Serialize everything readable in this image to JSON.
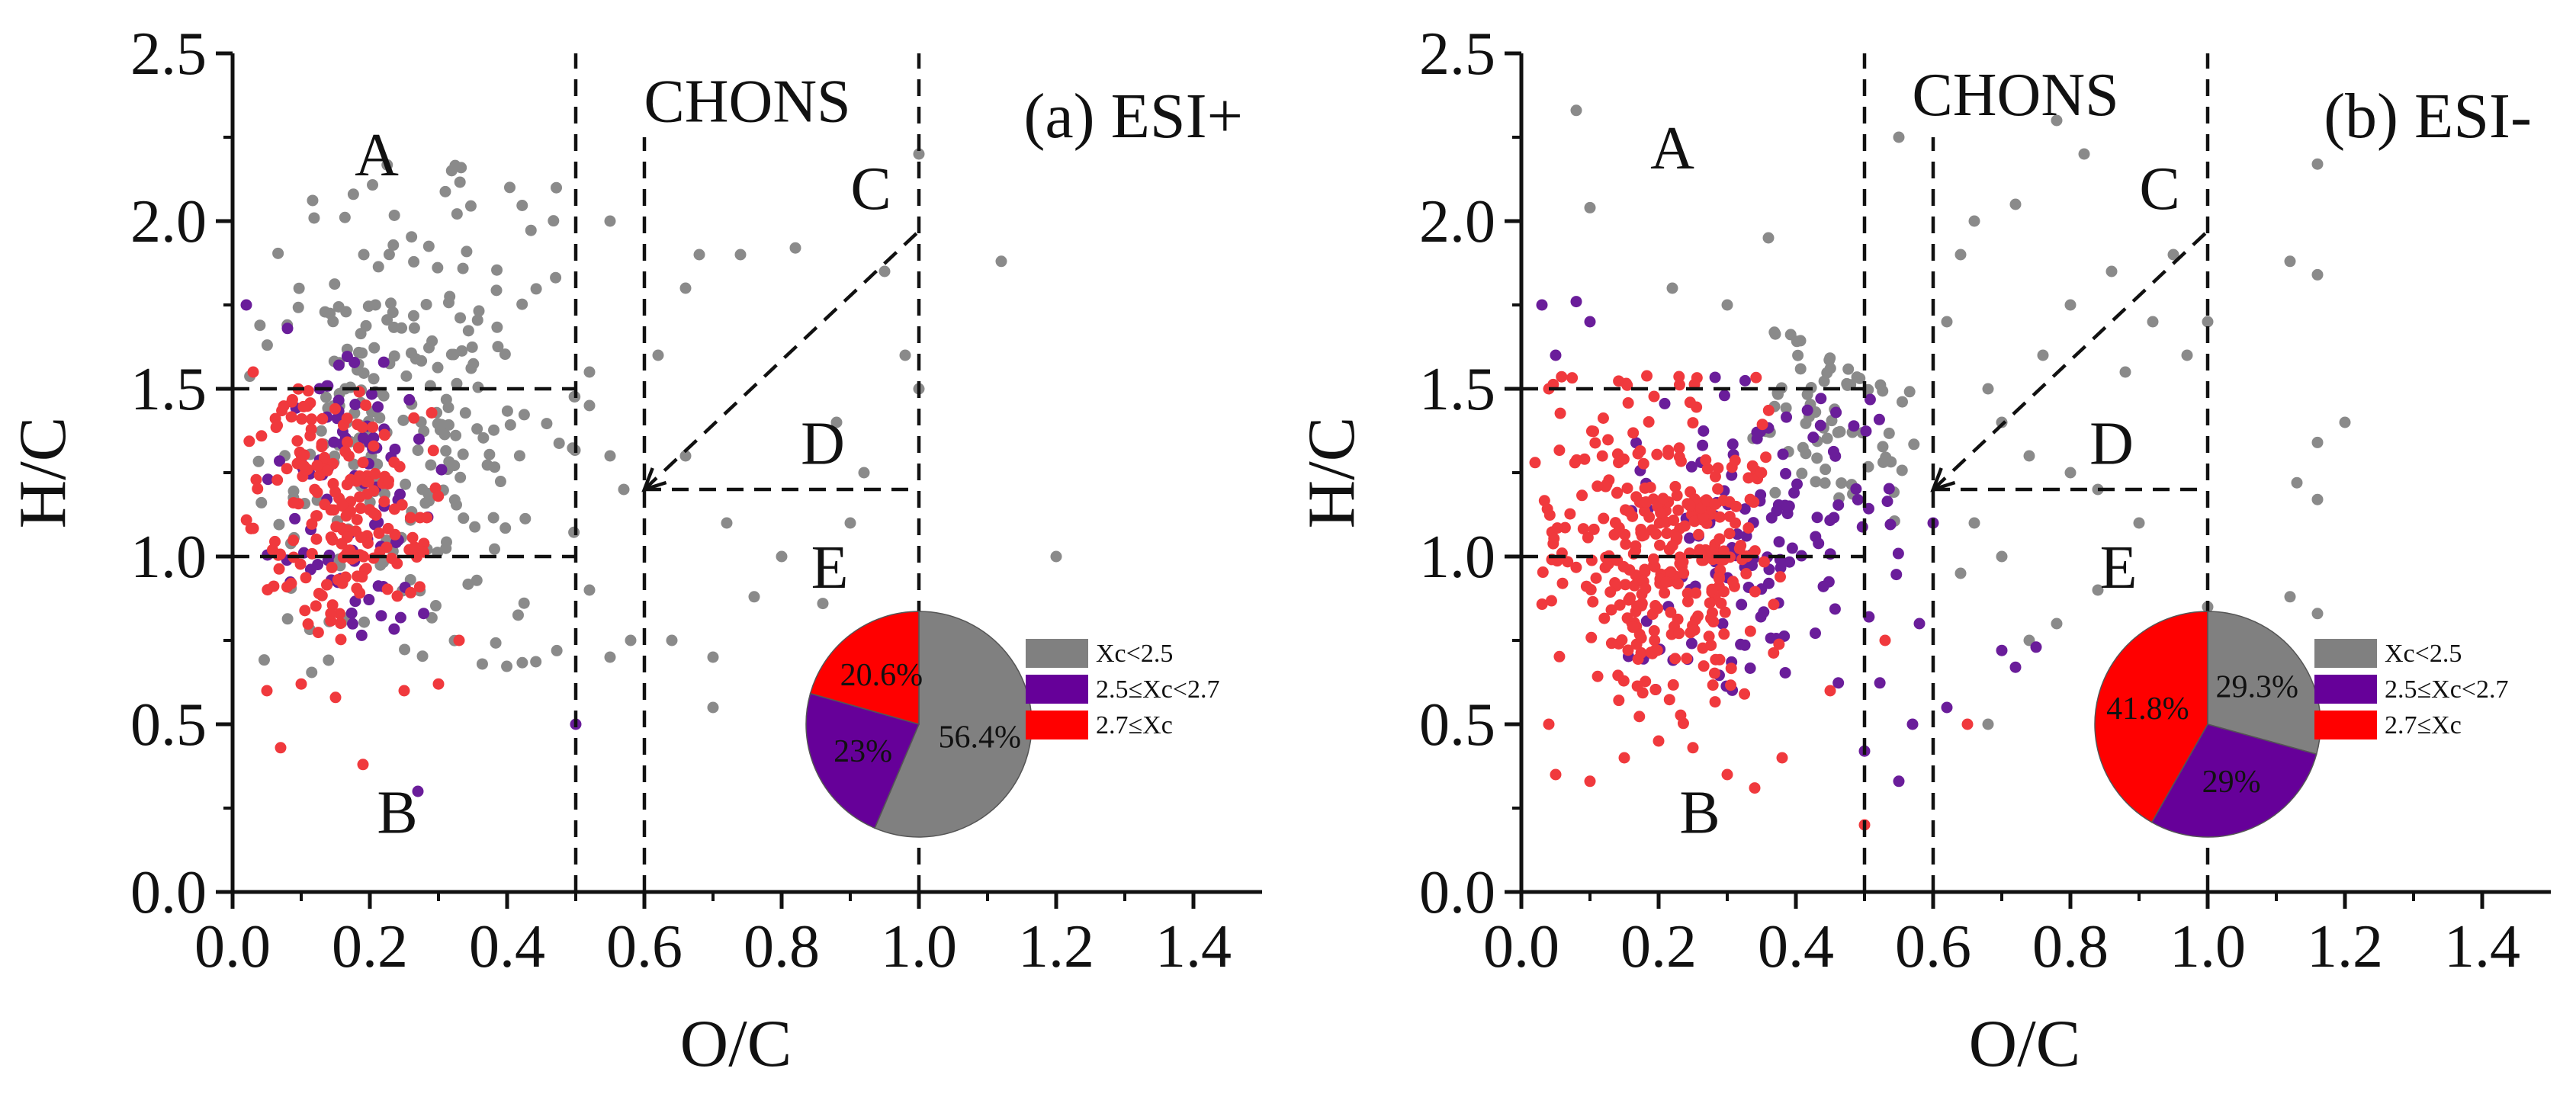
{
  "figure": {
    "background": "#ffffff",
    "colors": {
      "gray": "#8a8a8a",
      "purple": "#6a1d9a",
      "red": "#f0393d",
      "red_pie": "#ff0000",
      "gray_pie": "#808080",
      "purple_pie": "#660099",
      "ink": "#111111"
    }
  },
  "chart_data": [
    {
      "type": "scatter",
      "id": "esi-plus",
      "title": "(a) ESI+",
      "xlabel": "O/C",
      "ylabel": "H/C",
      "xlim": [
        0,
        1.5
      ],
      "ylim": [
        0,
        2.5
      ],
      "x_ticks": [
        "0.0",
        "0.2",
        "0.4",
        "0.6",
        "0.8",
        "1.0",
        "1.2",
        "1.4"
      ],
      "y_ticks": [
        "0.0",
        "0.5",
        "1.0",
        "1.5",
        "2.0",
        "2.5"
      ],
      "regions": [
        {
          "label": "CHONS",
          "x": 0.75,
          "y": 2.36
        },
        {
          "label": "A",
          "x": 0.21,
          "y": 2.2
        },
        {
          "label": "B",
          "x": 0.24,
          "y": 0.24
        },
        {
          "label": "C",
          "x": 0.93,
          "y": 2.1
        },
        {
          "label": "D",
          "x": 0.86,
          "y": 1.34
        },
        {
          "label": "E",
          "x": 0.87,
          "y": 0.97
        }
      ],
      "boundaries": [
        {
          "x1": 0.5,
          "y1": 0,
          "x2": 0.5,
          "y2": 2.5
        },
        {
          "x1": 0.6,
          "y1": 0,
          "x2": 0.6,
          "y2": 2.25
        },
        {
          "x1": 1.0,
          "y1": 0,
          "x2": 1.0,
          "y2": 2.5
        },
        {
          "x1": 0.0,
          "y1": 1.5,
          "x2": 0.5,
          "y2": 1.5
        },
        {
          "x1": 0.0,
          "y1": 1.0,
          "x2": 0.5,
          "y2": 1.0
        },
        {
          "x1": 0.6,
          "y1": 1.2,
          "x2": 1.0,
          "y2": 1.2
        },
        {
          "x1": 0.6,
          "y1": 1.2,
          "x2": 1.0,
          "y2": 1.97,
          "arrow": true
        }
      ],
      "series": [
        {
          "name": "Xc<2.5",
          "color": "#8a8a8a",
          "seed": 11,
          "count": 250,
          "cluster": {
            "x": [
              0.02,
              0.5
            ],
            "y": [
              0.65,
              2.2
            ]
          },
          "extra": [
            [
              0.52,
              1.55
            ],
            [
              0.55,
              1.3
            ],
            [
              0.57,
              1.2
            ],
            [
              0.52,
              0.9
            ],
            [
              0.55,
              0.7
            ],
            [
              0.58,
              0.75
            ],
            [
              0.62,
              1.6
            ],
            [
              0.64,
              0.75
            ],
            [
              0.66,
              1.8
            ],
            [
              0.68,
              1.9
            ],
            [
              0.7,
              0.7
            ],
            [
              0.72,
              1.1
            ],
            [
              0.74,
              1.9
            ],
            [
              0.76,
              0.88
            ],
            [
              0.8,
              1.0
            ],
            [
              0.82,
              1.92
            ],
            [
              0.86,
              0.86
            ],
            [
              0.88,
              1.4
            ],
            [
              0.9,
              1.1
            ],
            [
              0.92,
              1.25
            ],
            [
              0.95,
              1.85
            ],
            [
              0.98,
              1.6
            ],
            [
              1.0,
              2.2
            ],
            [
              1.0,
              1.5
            ],
            [
              1.12,
              1.88
            ],
            [
              1.2,
              1.0
            ],
            [
              0.66,
              1.3
            ],
            [
              0.7,
              0.55
            ],
            [
              0.55,
              2.0
            ],
            [
              0.52,
              1.45
            ]
          ]
        },
        {
          "name": "2.5≤Xc<2.7",
          "color": "#6a1d9a",
          "seed": 23,
          "count": 85,
          "cluster": {
            "x": [
              0.05,
              0.32
            ],
            "y": [
              0.75,
              1.6
            ]
          },
          "extra": [
            [
              0.02,
              1.75
            ],
            [
              0.27,
              0.3
            ],
            [
              0.5,
              0.5
            ],
            [
              0.08,
              1.68
            ]
          ]
        },
        {
          "name": "2.7≤Xc",
          "color": "#f0393d",
          "seed": 37,
          "count": 190,
          "cluster": {
            "x": [
              0.02,
              0.3
            ],
            "y": [
              0.75,
              1.5
            ]
          },
          "extra": [
            [
              0.07,
              0.43
            ],
            [
              0.19,
              0.38
            ],
            [
              0.05,
              0.6
            ],
            [
              0.15,
              0.58
            ],
            [
              0.1,
              0.62
            ],
            [
              0.25,
              0.6
            ],
            [
              0.03,
              1.55
            ],
            [
              0.33,
              0.75
            ],
            [
              0.3,
              0.62
            ]
          ]
        }
      ],
      "pie": {
        "cx": 1.0,
        "cy": 0.5,
        "slices": [
          {
            "label": "Xc<2.5",
            "value": 56.4,
            "text": "56.4%",
            "color": "#808080"
          },
          {
            "label": "2.5≤Xc<2.7",
            "value": 23.0,
            "text": "23%",
            "color": "#660099"
          },
          {
            "label": "2.7≤Xc",
            "value": 20.6,
            "text": "20.6%",
            "color": "#ff0000"
          }
        ]
      },
      "legend": [
        "Xc<2.5",
        "2.5≤Xc<2.7",
        "2.7≤Xc"
      ]
    },
    {
      "type": "scatter",
      "id": "esi-minus",
      "title": "(b) ESI-",
      "xlabel": "O/C",
      "ylabel": "H/C",
      "xlim": [
        0,
        1.5
      ],
      "ylim": [
        0,
        2.5
      ],
      "x_ticks": [
        "0.0",
        "0.2",
        "0.4",
        "0.6",
        "0.8",
        "1.0",
        "1.2",
        "1.4"
      ],
      "y_ticks": [
        "0.0",
        "0.5",
        "1.0",
        "1.5",
        "2.0",
        "2.5"
      ],
      "regions": [
        {
          "label": "CHONS",
          "x": 0.72,
          "y": 2.38
        },
        {
          "label": "A",
          "x": 0.22,
          "y": 2.22
        },
        {
          "label": "B",
          "x": 0.26,
          "y": 0.24
        },
        {
          "label": "C",
          "x": 0.93,
          "y": 2.1
        },
        {
          "label": "D",
          "x": 0.86,
          "y": 1.34
        },
        {
          "label": "E",
          "x": 0.87,
          "y": 0.97
        }
      ],
      "boundaries": [
        {
          "x1": 0.5,
          "y1": 0,
          "x2": 0.5,
          "y2": 2.5
        },
        {
          "x1": 0.6,
          "y1": 0,
          "x2": 0.6,
          "y2": 2.25
        },
        {
          "x1": 1.0,
          "y1": 0,
          "x2": 1.0,
          "y2": 2.5
        },
        {
          "x1": 0.0,
          "y1": 1.5,
          "x2": 0.5,
          "y2": 1.5
        },
        {
          "x1": 0.0,
          "y1": 1.0,
          "x2": 0.5,
          "y2": 1.0
        },
        {
          "x1": 0.6,
          "y1": 1.2,
          "x2": 1.0,
          "y2": 1.2
        },
        {
          "x1": 0.6,
          "y1": 1.2,
          "x2": 1.0,
          "y2": 1.97,
          "arrow": true
        }
      ],
      "series": [
        {
          "name": "Xc<2.5",
          "color": "#8a8a8a",
          "seed": 51,
          "count": 70,
          "cluster": {
            "x": [
              0.3,
              0.58
            ],
            "y": [
              1.1,
              1.7
            ]
          },
          "extra": [
            [
              0.08,
              2.33
            ],
            [
              0.1,
              2.04
            ],
            [
              0.22,
              1.8
            ],
            [
              0.36,
              1.95
            ],
            [
              0.3,
              1.75
            ],
            [
              0.62,
              1.7
            ],
            [
              0.64,
              1.9
            ],
            [
              0.66,
              2.0
            ],
            [
              0.68,
              1.5
            ],
            [
              0.7,
              1.4
            ],
            [
              0.72,
              2.05
            ],
            [
              0.74,
              1.3
            ],
            [
              0.76,
              1.6
            ],
            [
              0.78,
              2.3
            ],
            [
              0.8,
              1.75
            ],
            [
              0.82,
              2.2
            ],
            [
              0.84,
              1.2
            ],
            [
              0.86,
              1.85
            ],
            [
              0.88,
              1.55
            ],
            [
              0.9,
              1.1
            ],
            [
              0.92,
              1.7
            ],
            [
              0.95,
              1.9
            ],
            [
              0.97,
              1.6
            ],
            [
              1.0,
              1.7
            ],
            [
              1.12,
              1.88
            ],
            [
              1.16,
              1.84
            ],
            [
              1.2,
              1.4
            ],
            [
              1.16,
              1.34
            ],
            [
              1.16,
              1.17
            ],
            [
              1.13,
              1.22
            ],
            [
              1.16,
              2.17
            ],
            [
              1.12,
              0.88
            ],
            [
              1.16,
              0.83
            ],
            [
              0.64,
              0.95
            ],
            [
              0.66,
              1.1
            ],
            [
              0.7,
              1.0
            ],
            [
              0.74,
              0.75
            ],
            [
              0.78,
              0.8
            ],
            [
              0.8,
              1.25
            ],
            [
              0.84,
              0.9
            ],
            [
              0.68,
              0.5
            ],
            [
              1.0,
              0.85
            ],
            [
              0.55,
              2.25
            ]
          ]
        },
        {
          "name": "2.5≤Xc<2.7",
          "color": "#6a1d9a",
          "seed": 63,
          "count": 130,
          "cluster": {
            "x": [
              0.15,
              0.55
            ],
            "y": [
              0.6,
              1.55
            ]
          },
          "extra": [
            [
              0.03,
              1.75
            ],
            [
              0.05,
              1.6
            ],
            [
              0.08,
              1.76
            ],
            [
              0.1,
              1.7
            ],
            [
              0.55,
              0.33
            ],
            [
              0.5,
              0.42
            ],
            [
              0.57,
              0.5
            ],
            [
              0.62,
              0.55
            ],
            [
              0.7,
              0.72
            ],
            [
              0.72,
              0.67
            ],
            [
              0.75,
              0.73
            ],
            [
              0.6,
              1.1
            ],
            [
              0.58,
              0.8
            ]
          ]
        },
        {
          "name": "2.7≤Xc",
          "color": "#f0393d",
          "seed": 77,
          "count": 330,
          "cluster": {
            "x": [
              0.03,
              0.38
            ],
            "y": [
              0.5,
              1.55
            ]
          },
          "extra": [
            [
              0.05,
              0.35
            ],
            [
              0.1,
              0.33
            ],
            [
              0.15,
              0.4
            ],
            [
              0.2,
              0.45
            ],
            [
              0.25,
              0.43
            ],
            [
              0.34,
              0.31
            ],
            [
              0.04,
              0.5
            ],
            [
              0.45,
              0.6
            ],
            [
              0.5,
              0.2
            ],
            [
              0.65,
              0.5
            ],
            [
              0.53,
              0.75
            ],
            [
              0.02,
              1.28
            ],
            [
              0.04,
              1.5
            ],
            [
              0.06,
              0.92
            ],
            [
              0.38,
              0.4
            ],
            [
              0.3,
              0.35
            ]
          ]
        }
      ],
      "pie": {
        "cx": 1.0,
        "cy": 0.5,
        "slices": [
          {
            "label": "Xc<2.5",
            "value": 29.3,
            "text": "29.3%",
            "color": "#808080"
          },
          {
            "label": "2.5≤Xc<2.7",
            "value": 29.0,
            "text": "29%",
            "color": "#660099"
          },
          {
            "label": "2.7≤Xc",
            "value": 41.8,
            "text": "41.8%",
            "color": "#ff0000"
          }
        ]
      },
      "legend": [
        "Xc<2.5",
        "2.5≤Xc<2.7",
        "2.7≤Xc"
      ]
    }
  ]
}
